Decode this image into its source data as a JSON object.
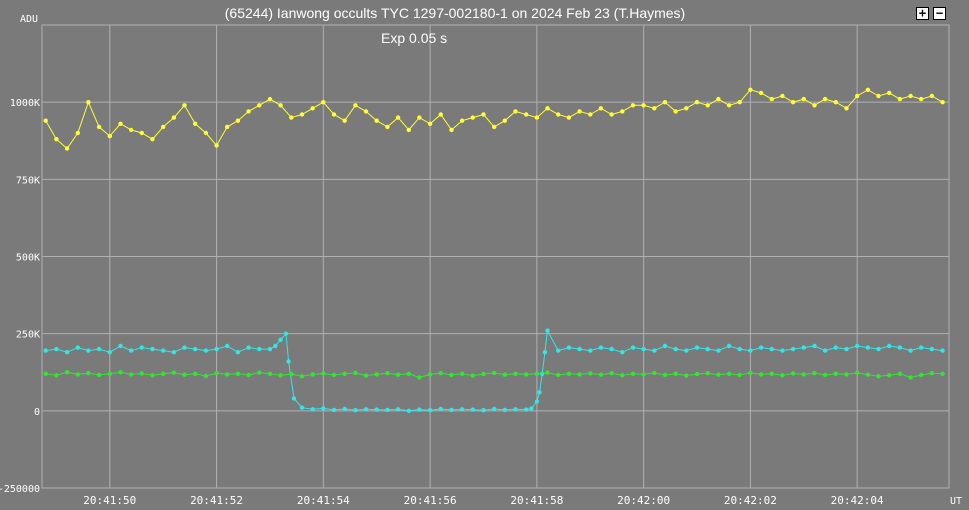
{
  "window": {
    "title": "(65244) Ianwong occults TYC 1297-002180-1 on 2024 Feb 23 (T.Haymes)",
    "subtitle": "Exp  0.05 s",
    "zoom_in_label": "+",
    "zoom_out_label": "−"
  },
  "chart_data": {
    "type": "scatter",
    "title": "(65244) Ianwong occults TYC 1297-002180-1 on 2024 Feb 23 (T.Haymes)",
    "subtitle": "Exp  0.05 s",
    "ylabel": "ADU",
    "xlabel": "UT",
    "ylim": [
      -250000,
      1250000
    ],
    "xlim_seconds": [
      48.73,
      65.72
    ],
    "grid": true,
    "y_ticks": [
      {
        "value": 1000000,
        "label": "1000K"
      },
      {
        "value": 750000,
        "label": "750K"
      },
      {
        "value": 500000,
        "label": "500K"
      },
      {
        "value": 250000,
        "label": "250K"
      },
      {
        "value": 0,
        "label": "0"
      },
      {
        "value": -250000,
        "label": "-250000"
      }
    ],
    "x_ticks": [
      {
        "value": 50,
        "label": "20:41:50"
      },
      {
        "value": 52,
        "label": "20:41:52"
      },
      {
        "value": 54,
        "label": "20:41:54"
      },
      {
        "value": 56,
        "label": "20:41:56"
      },
      {
        "value": 58,
        "label": "20:41:58"
      },
      {
        "value": 60,
        "label": "20:42:00"
      },
      {
        "value": 62,
        "label": "20:42:02"
      },
      {
        "value": 64,
        "label": "20:42:04"
      }
    ],
    "series": [
      {
        "color": "#ffff33",
        "x": [
          48.8,
          49.0,
          49.2,
          49.4,
          49.6,
          49.8,
          50.0,
          50.2,
          50.4,
          50.6,
          50.8,
          51.0,
          51.2,
          51.4,
          51.6,
          51.8,
          52.0,
          52.2,
          52.4,
          52.6,
          52.8,
          53.0,
          53.2,
          53.4,
          53.6,
          53.8,
          54.0,
          54.2,
          54.4,
          54.6,
          54.8,
          55.0,
          55.2,
          55.4,
          55.6,
          55.8,
          56.0,
          56.2,
          56.4,
          56.6,
          56.8,
          57.0,
          57.2,
          57.4,
          57.6,
          57.8,
          58.0,
          58.2,
          58.4,
          58.6,
          58.8,
          59.0,
          59.2,
          59.4,
          59.6,
          59.8,
          60.0,
          60.2,
          60.4,
          60.6,
          60.8,
          61.0,
          61.2,
          61.4,
          61.6,
          61.8,
          62.0,
          62.2,
          62.4,
          62.6,
          62.8,
          63.0,
          63.2,
          63.4,
          63.6,
          63.8,
          64.0,
          64.2,
          64.4,
          64.6,
          64.8,
          65.0,
          65.2,
          65.4,
          65.6
        ],
        "values": [
          940000,
          880000,
          850000,
          900000,
          1000000,
          920000,
          890000,
          930000,
          910000,
          900000,
          880000,
          920000,
          950000,
          990000,
          930000,
          900000,
          860000,
          920000,
          940000,
          970000,
          990000,
          1010000,
          990000,
          950000,
          960000,
          980000,
          1000000,
          960000,
          940000,
          990000,
          970000,
          940000,
          920000,
          950000,
          910000,
          950000,
          930000,
          960000,
          910000,
          940000,
          950000,
          960000,
          920000,
          940000,
          970000,
          960000,
          950000,
          980000,
          960000,
          950000,
          970000,
          960000,
          980000,
          960000,
          970000,
          990000,
          990000,
          980000,
          1000000,
          970000,
          980000,
          1000000,
          990000,
          1010000,
          990000,
          1000000,
          1040000,
          1030000,
          1010000,
          1020000,
          1000000,
          1010000,
          990000,
          1010000,
          1000000,
          980000,
          1020000,
          1040000,
          1020000,
          1030000,
          1010000,
          1020000,
          1010000,
          1020000,
          1000000
        ]
      },
      {
        "color": "#33e6e6",
        "x": [
          48.8,
          49.0,
          49.2,
          49.4,
          49.6,
          49.8,
          50.0,
          50.2,
          50.4,
          50.6,
          50.8,
          51.0,
          51.2,
          51.4,
          51.6,
          51.8,
          52.0,
          52.2,
          52.4,
          52.6,
          52.8,
          53.0,
          53.1,
          53.2,
          53.3,
          53.35,
          53.45,
          53.6,
          53.8,
          54.0,
          54.2,
          54.4,
          54.6,
          54.8,
          55.0,
          55.2,
          55.4,
          55.6,
          55.8,
          56.0,
          56.2,
          56.4,
          56.6,
          56.8,
          57.0,
          57.2,
          57.4,
          57.6,
          57.8,
          57.9,
          58.0,
          58.05,
          58.1,
          58.15,
          58.2,
          58.4,
          58.6,
          58.8,
          59.0,
          59.2,
          59.4,
          59.6,
          59.8,
          60.0,
          60.2,
          60.4,
          60.6,
          60.8,
          61.0,
          61.2,
          61.4,
          61.6,
          61.8,
          62.0,
          62.2,
          62.4,
          62.6,
          62.8,
          63.0,
          63.2,
          63.4,
          63.6,
          63.8,
          64.0,
          64.2,
          64.4,
          64.6,
          64.8,
          65.0,
          65.2,
          65.4,
          65.6
        ],
        "values": [
          195000,
          200000,
          190000,
          205000,
          195000,
          200000,
          190000,
          210000,
          195000,
          205000,
          200000,
          195000,
          190000,
          205000,
          200000,
          195000,
          200000,
          210000,
          190000,
          205000,
          200000,
          200000,
          210000,
          230000,
          250000,
          160000,
          40000,
          10000,
          5000,
          8000,
          3000,
          6000,
          2000,
          5000,
          4000,
          3000,
          5000,
          0,
          4000,
          2000,
          6000,
          3000,
          5000,
          4000,
          2000,
          6000,
          3000,
          5000,
          4000,
          8000,
          30000,
          60000,
          120000,
          190000,
          260000,
          195000,
          205000,
          200000,
          195000,
          205000,
          200000,
          190000,
          205000,
          200000,
          195000,
          210000,
          200000,
          195000,
          205000,
          200000,
          195000,
          210000,
          200000,
          195000,
          205000,
          200000,
          195000,
          200000,
          205000,
          210000,
          195000,
          205000,
          200000,
          210000,
          205000,
          200000,
          210000,
          205000,
          195000,
          205000,
          200000,
          195000
        ]
      },
      {
        "color": "#33e633",
        "x": [
          48.8,
          49.0,
          49.2,
          49.4,
          49.6,
          49.8,
          50.0,
          50.2,
          50.4,
          50.6,
          50.8,
          51.0,
          51.2,
          51.4,
          51.6,
          51.8,
          52.0,
          52.2,
          52.4,
          52.6,
          52.8,
          53.0,
          53.2,
          53.4,
          53.6,
          53.8,
          54.0,
          54.2,
          54.4,
          54.6,
          54.8,
          55.0,
          55.2,
          55.4,
          55.6,
          55.8,
          56.0,
          56.2,
          56.4,
          56.6,
          56.8,
          57.0,
          57.2,
          57.4,
          57.6,
          57.8,
          58.0,
          58.2,
          58.4,
          58.6,
          58.8,
          59.0,
          59.2,
          59.4,
          59.6,
          59.8,
          60.0,
          60.2,
          60.4,
          60.6,
          60.8,
          61.0,
          61.2,
          61.4,
          61.6,
          61.8,
          62.0,
          62.2,
          62.4,
          62.6,
          62.8,
          63.0,
          63.2,
          63.4,
          63.6,
          63.8,
          64.0,
          64.2,
          64.4,
          64.6,
          64.8,
          65.0,
          65.2,
          65.4,
          65.6
        ],
        "values": [
          120000,
          115000,
          125000,
          118000,
          122000,
          116000,
          120000,
          125000,
          118000,
          121000,
          115000,
          120000,
          124000,
          117000,
          120000,
          113000,
          122000,
          118000,
          120000,
          116000,
          124000,
          120000,
          115000,
          119000,
          112000,
          118000,
          121000,
          116000,
          120000,
          123000,
          114000,
          118000,
          122000,
          117000,
          120000,
          108000,
          118000,
          122000,
          116000,
          120000,
          114000,
          119000,
          123000,
          117000,
          120000,
          118000,
          120000,
          124000,
          116000,
          120000,
          118000,
          121000,
          117000,
          122000,
          115000,
          120000,
          118000,
          123000,
          116000,
          120000,
          114000,
          119000,
          122000,
          117000,
          120000,
          116000,
          123000,
          118000,
          120000,
          115000,
          121000,
          118000,
          122000,
          116000,
          120000,
          118000,
          123000,
          117000,
          112000,
          115000,
          120000,
          108000,
          116000,
          122000,
          120000
        ]
      }
    ]
  }
}
